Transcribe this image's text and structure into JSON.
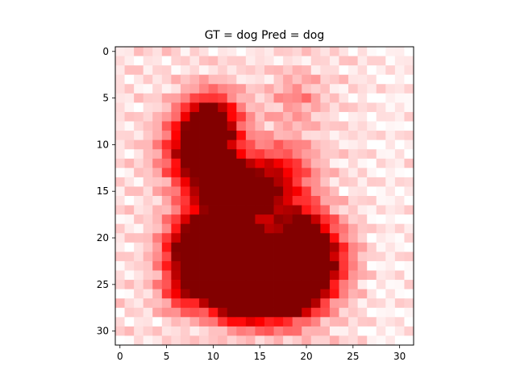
{
  "chart_data": {
    "type": "heatmap",
    "title": "GT = dog Pred = dog",
    "xlabel": "",
    "ylabel": "",
    "xlim": [
      -0.5,
      31.5
    ],
    "ylim": [
      31.5,
      -0.5
    ],
    "x_ticks": [
      0,
      5,
      10,
      15,
      20,
      25,
      30
    ],
    "y_ticks": [
      0,
      5,
      10,
      15,
      20,
      25,
      30
    ],
    "colormap": "Reds",
    "grid": false,
    "matrix_shape": [
      32,
      32
    ],
    "values_note": "values are estimated relative intensities 0..1; 0 = white, 1 = dark red"
  }
}
